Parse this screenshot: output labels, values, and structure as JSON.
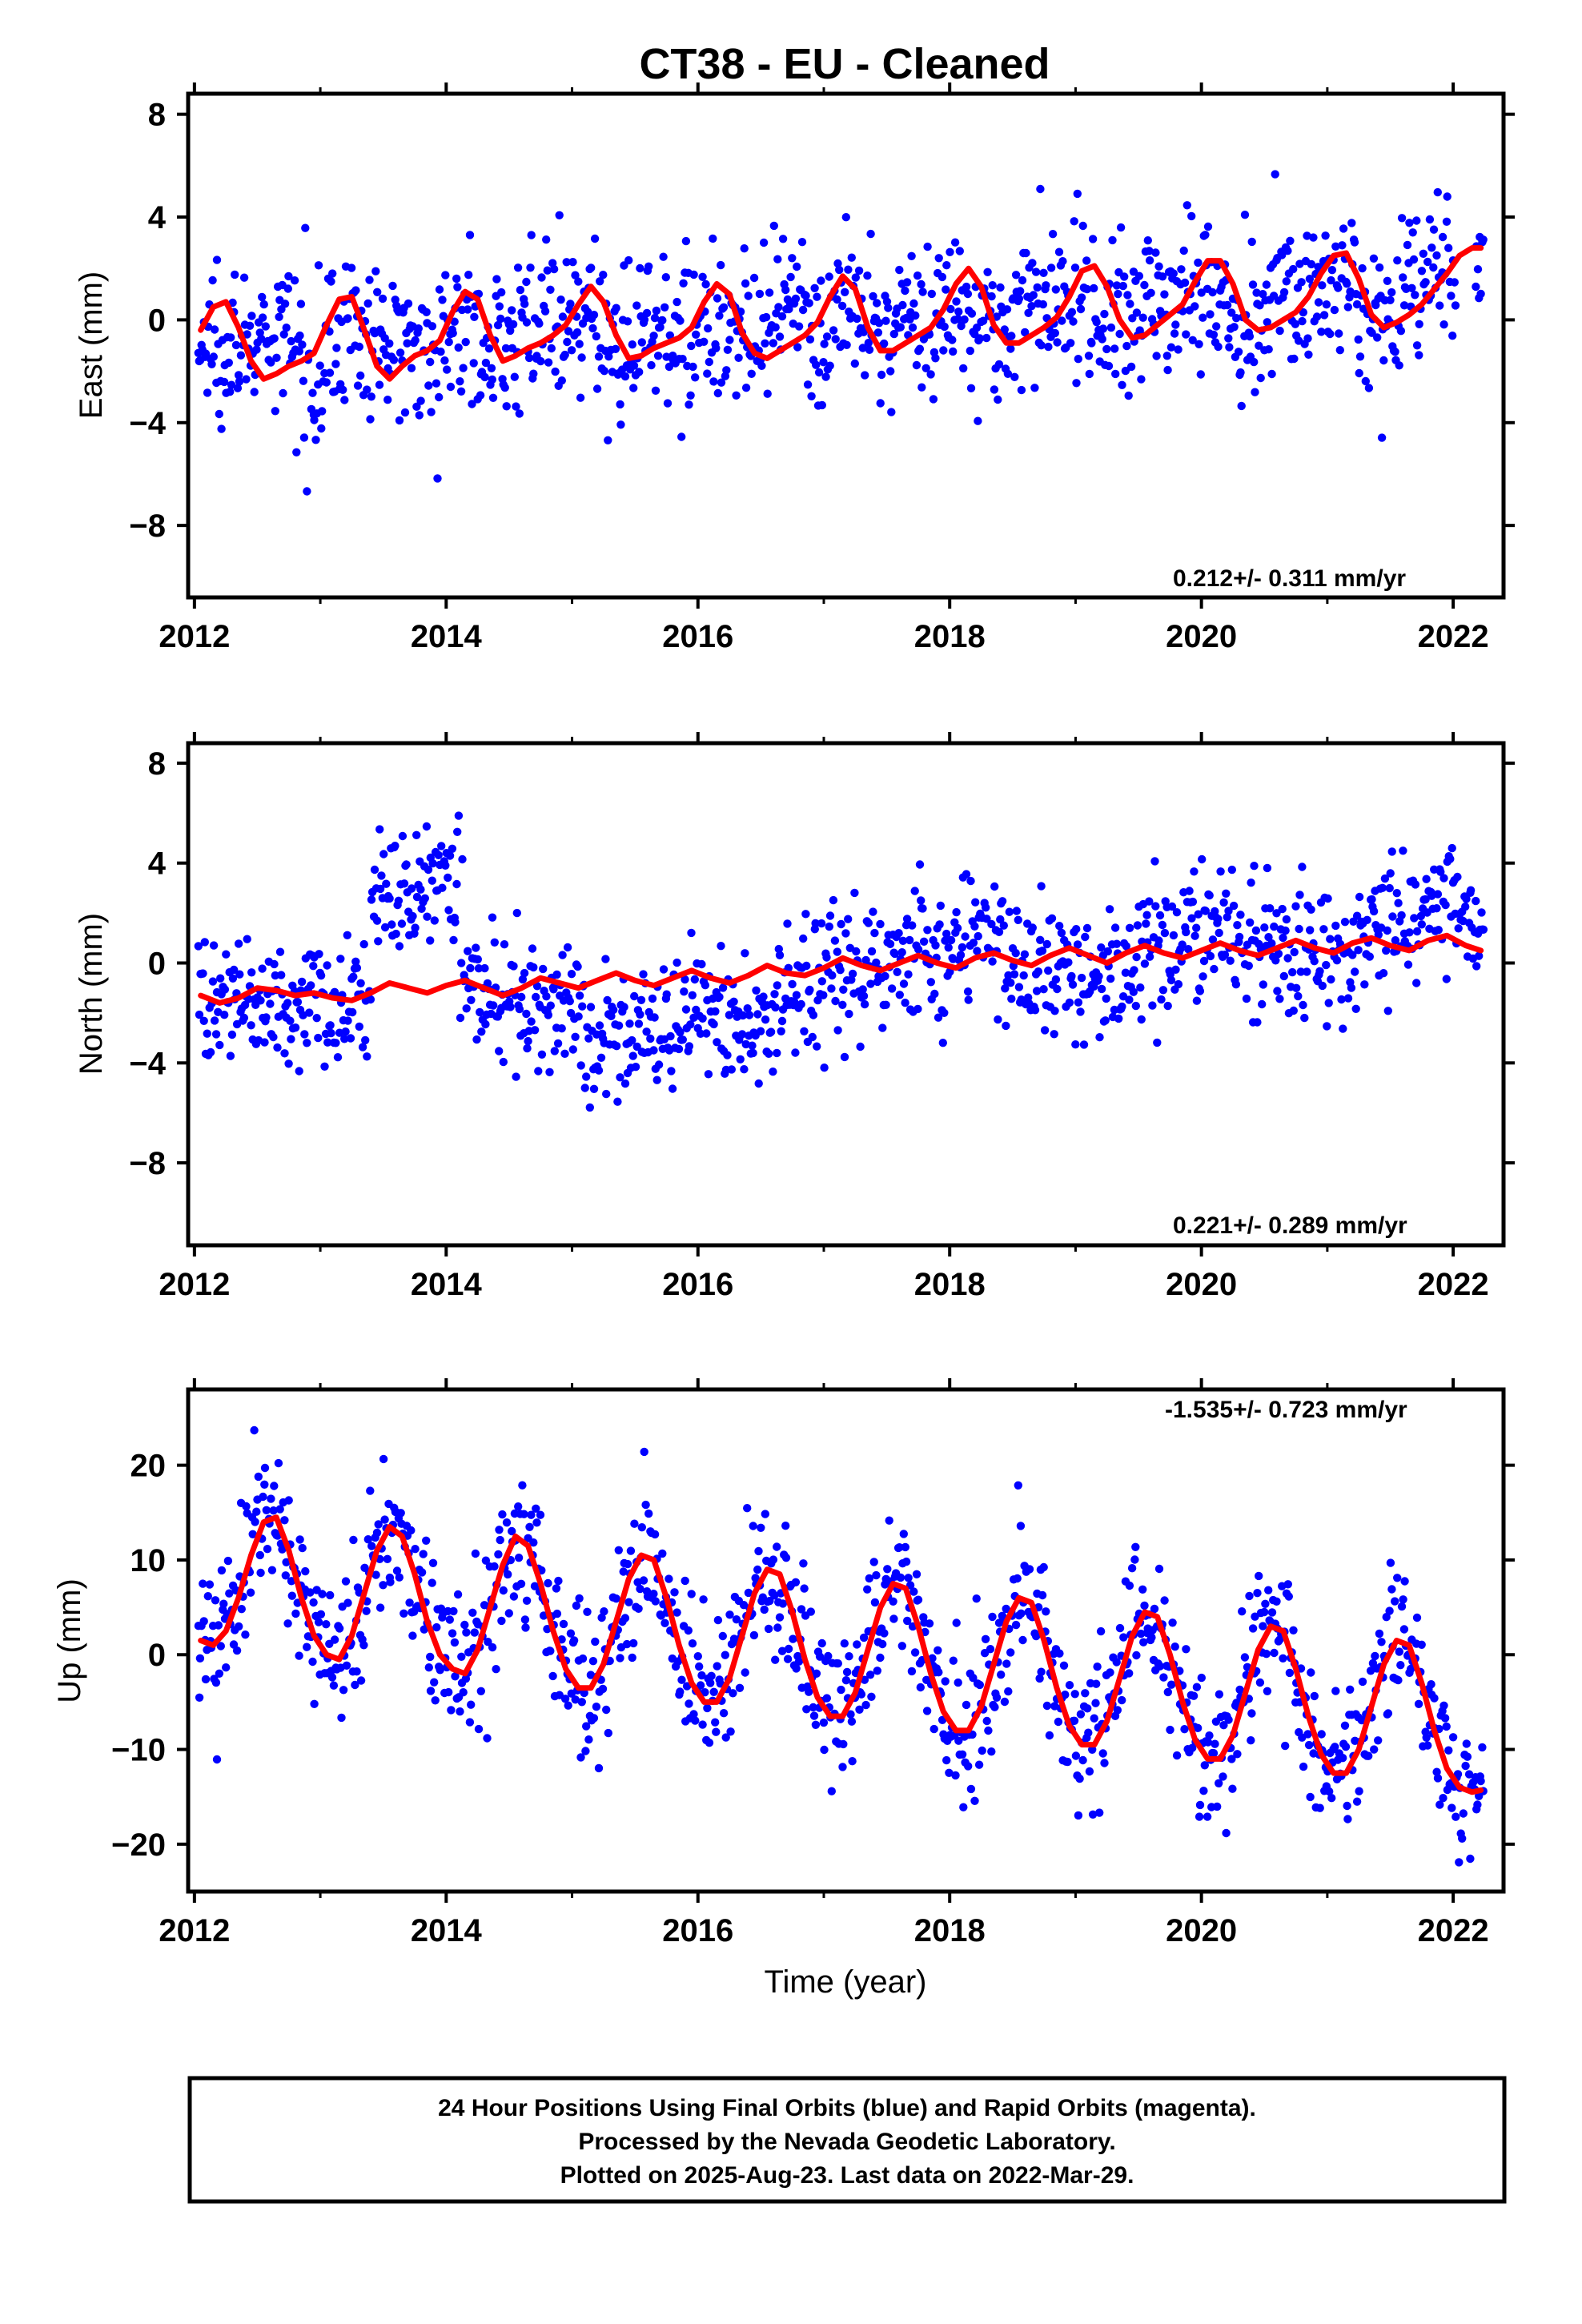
{
  "title": "CT38  - EU - Cleaned",
  "xlabel": "Time (year)",
  "colors": {
    "final_orbits": "#0000ff",
    "model": "#ff0000",
    "frame": "#000000"
  },
  "footer": {
    "line1": "24 Hour Positions Using Final Orbits (blue) and Rapid Orbits (magenta).",
    "line2": "Processed by the Nevada Geodetic Laboratory.",
    "line3": "Plotted on 2025-Aug-23. Last data on 2022-Mar-29."
  },
  "chart_data": [
    {
      "type": "scatter",
      "component": "east",
      "ylabel": "East (mm)",
      "rate_label": "0.212+/- 0.311 mm/yr",
      "xlim": [
        2011.95,
        2022.4
      ],
      "ylim": [
        -10.8,
        8.8
      ],
      "xticks": [
        2012,
        2014,
        2016,
        2018,
        2020,
        2022
      ],
      "yticks": [
        -8,
        -4,
        0,
        4,
        8
      ],
      "ytick_labels": [
        "−8",
        "−4",
        "0",
        "4",
        "8"
      ],
      "series": [
        {
          "x": [
            2012.05,
            2012.15,
            2012.25,
            2012.35,
            2012.45,
            2012.55,
            2012.65,
            2012.75,
            2012.85,
            2012.95,
            2013.05,
            2013.15,
            2013.25,
            2013.35,
            2013.45,
            2013.55,
            2013.65,
            2013.75,
            2013.85,
            2013.95,
            2014.05,
            2014.15,
            2014.25,
            2014.35,
            2014.45,
            2014.55,
            2014.65,
            2014.75,
            2014.85,
            2014.95,
            2015.05,
            2015.15,
            2015.25,
            2015.35,
            2015.45,
            2015.55,
            2015.65,
            2015.75,
            2015.85,
            2015.95,
            2016.05,
            2016.15,
            2016.25,
            2016.35,
            2016.45,
            2016.55,
            2016.65,
            2016.75,
            2016.85,
            2016.95,
            2017.05,
            2017.15,
            2017.25,
            2017.35,
            2017.45,
            2017.55,
            2017.65,
            2017.75,
            2017.85,
            2017.95,
            2018.05,
            2018.15,
            2018.25,
            2018.35,
            2018.45,
            2018.55,
            2018.65,
            2018.75,
            2018.85,
            2018.95,
            2019.05,
            2019.15,
            2019.25,
            2019.35,
            2019.45,
            2019.55,
            2019.65,
            2019.75,
            2019.85,
            2019.95,
            2020.05,
            2020.15,
            2020.25,
            2020.35,
            2020.45,
            2020.55,
            2020.65,
            2020.75,
            2020.85,
            2020.95,
            2021.05,
            2021.15,
            2021.25,
            2021.35,
            2021.45,
            2021.55,
            2021.65,
            2021.75,
            2021.85,
            2021.95,
            2022.05,
            2022.15,
            2022.22
          ],
          "y": [
            -0.4,
            0.5,
            0.7,
            -0.3,
            -1.6,
            -2.3,
            -2.1,
            -1.8,
            -1.6,
            -1.3,
            -0.2,
            0.8,
            0.9,
            -0.4,
            -1.8,
            -2.3,
            -1.8,
            -1.4,
            -1.2,
            -0.8,
            0.3,
            1.1,
            0.8,
            -0.6,
            -1.6,
            -1.4,
            -1.1,
            -0.9,
            -0.6,
            -0.2,
            0.6,
            1.3,
            0.7,
            -0.6,
            -1.5,
            -1.4,
            -1.1,
            -0.9,
            -0.7,
            -0.3,
            0.7,
            1.4,
            1.0,
            -0.5,
            -1.3,
            -1.5,
            -1.2,
            -0.9,
            -0.6,
            -0.1,
            0.9,
            1.7,
            1.2,
            -0.3,
            -1.2,
            -1.2,
            -0.9,
            -0.6,
            -0.3,
            0.4,
            1.4,
            2.0,
            1.3,
            -0.2,
            -0.9,
            -0.9,
            -0.6,
            -0.3,
            0.1,
            0.9,
            1.9,
            2.1,
            1.3,
            0.0,
            -0.7,
            -0.6,
            -0.2,
            0.2,
            0.6,
            1.5,
            2.3,
            2.3,
            1.4,
            0.0,
            -0.4,
            -0.3,
            0.0,
            0.3,
            0.9,
            1.8,
            2.5,
            2.6,
            1.6,
            0.2,
            -0.3,
            -0.1,
            0.2,
            0.6,
            1.2,
            1.8,
            2.5,
            2.8,
            2.8
          ]
        }
      ]
    },
    {
      "type": "scatter",
      "component": "north",
      "ylabel": "North (mm)",
      "rate_label": "0.221+/- 0.289 mm/yr",
      "xlim": [
        2011.95,
        2022.4
      ],
      "ylim": [
        -11.3,
        8.8
      ],
      "xticks": [
        2012,
        2014,
        2016,
        2018,
        2020,
        2022
      ],
      "yticks": [
        -8,
        -4,
        0,
        4,
        8
      ],
      "ytick_labels": [
        "−8",
        "−4",
        "0",
        "4",
        "8"
      ],
      "series": [
        {
          "x": [
            2012.05,
            2012.2,
            2012.35,
            2012.5,
            2012.65,
            2012.8,
            2012.95,
            2013.1,
            2013.25,
            2013.4,
            2013.55,
            2013.7,
            2013.85,
            2014.0,
            2014.15,
            2014.3,
            2014.45,
            2014.6,
            2014.75,
            2014.9,
            2015.05,
            2015.2,
            2015.35,
            2015.5,
            2015.65,
            2015.8,
            2015.95,
            2016.1,
            2016.25,
            2016.4,
            2016.55,
            2016.7,
            2016.85,
            2017.0,
            2017.15,
            2017.3,
            2017.45,
            2017.6,
            2017.75,
            2017.9,
            2018.05,
            2018.2,
            2018.35,
            2018.5,
            2018.65,
            2018.8,
            2018.95,
            2019.1,
            2019.25,
            2019.4,
            2019.55,
            2019.7,
            2019.85,
            2020.0,
            2020.15,
            2020.3,
            2020.45,
            2020.6,
            2020.75,
            2020.9,
            2021.05,
            2021.2,
            2021.35,
            2021.5,
            2021.65,
            2021.8,
            2021.95,
            2022.1,
            2022.22
          ],
          "y": [
            -1.3,
            -1.6,
            -1.4,
            -1.0,
            -1.1,
            -1.3,
            -1.2,
            -1.4,
            -1.5,
            -1.2,
            -0.8,
            -1.0,
            -1.2,
            -0.9,
            -0.7,
            -1.0,
            -1.3,
            -1.0,
            -0.6,
            -0.8,
            -1.0,
            -0.7,
            -0.4,
            -0.7,
            -0.9,
            -0.6,
            -0.3,
            -0.6,
            -0.8,
            -0.5,
            -0.1,
            -0.4,
            -0.5,
            -0.2,
            0.2,
            -0.1,
            -0.3,
            0.0,
            0.3,
            0.0,
            -0.2,
            0.2,
            0.4,
            0.1,
            -0.1,
            0.3,
            0.6,
            0.3,
            0.0,
            0.4,
            0.7,
            0.4,
            0.2,
            0.5,
            0.8,
            0.5,
            0.3,
            0.6,
            0.9,
            0.6,
            0.4,
            0.8,
            1.0,
            0.7,
            0.5,
            0.9,
            1.1,
            0.7,
            0.5
          ]
        }
      ]
    },
    {
      "type": "scatter",
      "component": "up",
      "ylabel": "Up (mm)",
      "rate_label": "-1.535+/- 0.723 mm/yr",
      "xlim": [
        2011.95,
        2022.4
      ],
      "ylim": [
        -25,
        28
      ],
      "xticks": [
        2012,
        2014,
        2016,
        2018,
        2020,
        2022
      ],
      "yticks": [
        -20,
        -10,
        0,
        10,
        20
      ],
      "ytick_labels": [
        "−20",
        "−10",
        "0",
        "10",
        "20"
      ],
      "series": [
        {
          "x": [
            2012.05,
            2012.15,
            2012.25,
            2012.35,
            2012.45,
            2012.55,
            2012.65,
            2012.75,
            2012.85,
            2012.95,
            2013.05,
            2013.15,
            2013.25,
            2013.35,
            2013.45,
            2013.55,
            2013.65,
            2013.75,
            2013.85,
            2013.95,
            2014.05,
            2014.15,
            2014.25,
            2014.35,
            2014.45,
            2014.55,
            2014.65,
            2014.75,
            2014.85,
            2014.95,
            2015.05,
            2015.15,
            2015.25,
            2015.35,
            2015.45,
            2015.55,
            2015.65,
            2015.75,
            2015.85,
            2015.95,
            2016.05,
            2016.15,
            2016.25,
            2016.35,
            2016.45,
            2016.55,
            2016.65,
            2016.75,
            2016.85,
            2016.95,
            2017.05,
            2017.15,
            2017.25,
            2017.35,
            2017.45,
            2017.55,
            2017.65,
            2017.75,
            2017.85,
            2017.95,
            2018.05,
            2018.15,
            2018.25,
            2018.35,
            2018.45,
            2018.55,
            2018.65,
            2018.75,
            2018.85,
            2018.95,
            2019.05,
            2019.15,
            2019.25,
            2019.35,
            2019.45,
            2019.55,
            2019.65,
            2019.75,
            2019.85,
            2019.95,
            2020.05,
            2020.15,
            2020.25,
            2020.35,
            2020.45,
            2020.55,
            2020.65,
            2020.75,
            2020.85,
            2020.95,
            2021.05,
            2021.15,
            2021.25,
            2021.35,
            2021.45,
            2021.55,
            2021.65,
            2021.75,
            2021.85,
            2021.95,
            2022.05,
            2022.15,
            2022.22
          ],
          "y": [
            1.5,
            1.0,
            2.5,
            6.0,
            10.5,
            14.0,
            14.5,
            11.0,
            6.0,
            2.0,
            0.0,
            -0.5,
            2.0,
            6.5,
            11.0,
            13.5,
            12.5,
            8.5,
            3.5,
            0.0,
            -1.5,
            -2.0,
            0.5,
            5.0,
            9.5,
            12.5,
            11.5,
            7.5,
            2.5,
            -1.5,
            -3.5,
            -3.5,
            -1.0,
            3.5,
            8.0,
            10.5,
            10.0,
            6.0,
            1.0,
            -3.0,
            -5.0,
            -5.0,
            -2.5,
            2.0,
            6.5,
            9.0,
            8.5,
            4.5,
            -0.5,
            -4.5,
            -6.5,
            -6.5,
            -4.0,
            0.5,
            5.0,
            7.5,
            7.0,
            3.0,
            -2.0,
            -6.0,
            -8.0,
            -8.0,
            -5.5,
            -1.0,
            3.5,
            6.0,
            5.5,
            1.5,
            -3.5,
            -7.5,
            -9.5,
            -9.5,
            -7.0,
            -2.5,
            2.0,
            4.5,
            4.0,
            0.0,
            -5.0,
            -9.0,
            -11.0,
            -11.0,
            -8.5,
            -4.0,
            0.5,
            3.0,
            2.5,
            -1.5,
            -6.5,
            -10.5,
            -12.5,
            -12.5,
            -10.0,
            -5.5,
            -1.0,
            1.5,
            1.0,
            -3.0,
            -8.0,
            -12.0,
            -14.0,
            -14.5,
            -14.3
          ]
        }
      ]
    }
  ]
}
